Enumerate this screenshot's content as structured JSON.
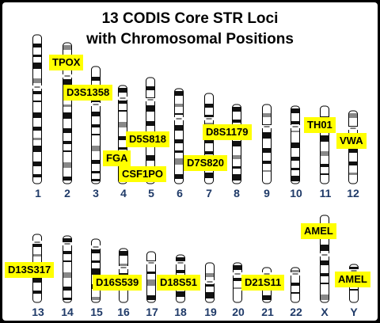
{
  "title": {
    "line1": "13 CODIS Core STR Loci",
    "line2": "with Chromosomal Positions"
  },
  "chromosomes": [
    {
      "label": "1"
    },
    {
      "label": "2"
    },
    {
      "label": "3"
    },
    {
      "label": "4"
    },
    {
      "label": "5"
    },
    {
      "label": "6"
    },
    {
      "label": "7"
    },
    {
      "label": "8"
    },
    {
      "label": "9"
    },
    {
      "label": "10"
    },
    {
      "label": "11"
    },
    {
      "label": "12"
    },
    {
      "label": "13"
    },
    {
      "label": "14"
    },
    {
      "label": "15"
    },
    {
      "label": "16"
    },
    {
      "label": "17"
    },
    {
      "label": "18"
    },
    {
      "label": "19"
    },
    {
      "label": "20"
    },
    {
      "label": "21"
    },
    {
      "label": "22"
    },
    {
      "label": "X"
    },
    {
      "label": "Y"
    }
  ],
  "loci": [
    {
      "name": "TPOX",
      "chromosome": "2"
    },
    {
      "name": "D3S1358",
      "chromosome": "3"
    },
    {
      "name": "D5S818",
      "chromosome": "5"
    },
    {
      "name": "FGA",
      "chromosome": "4"
    },
    {
      "name": "CSF1PO",
      "chromosome": "5"
    },
    {
      "name": "D7S820",
      "chromosome": "7"
    },
    {
      "name": "D8S1179",
      "chromosome": "8"
    },
    {
      "name": "TH01",
      "chromosome": "11"
    },
    {
      "name": "VWA",
      "chromosome": "12"
    },
    {
      "name": "D13S317",
      "chromosome": "13"
    },
    {
      "name": "D16S539",
      "chromosome": "16"
    },
    {
      "name": "D18S51",
      "chromosome": "18"
    },
    {
      "name": "D21S11",
      "chromosome": "21"
    },
    {
      "name": "AMEL",
      "chromosome": "X"
    },
    {
      "name": "AMEL",
      "chromosome": "Y"
    }
  ]
}
